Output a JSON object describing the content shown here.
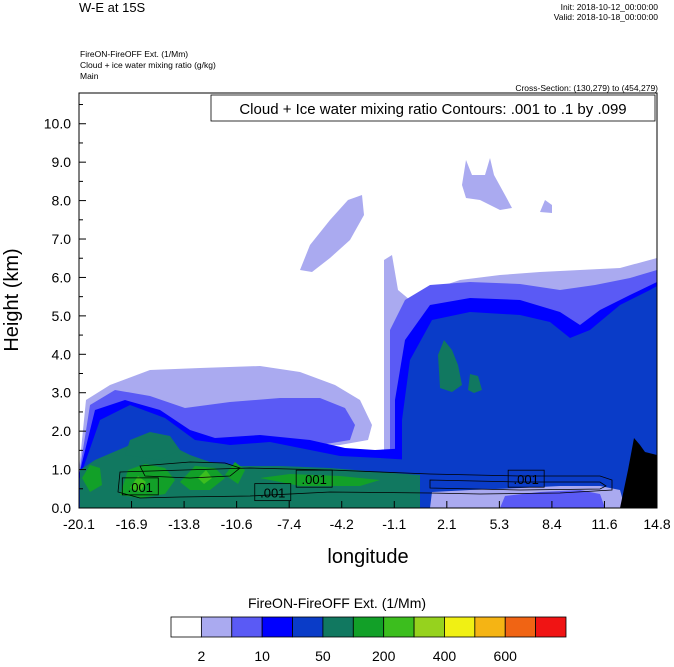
{
  "header": {
    "title": "W-E at 15S",
    "init": "Init: 2018-10-12_00:00:00",
    "valid": "Valid: 2018-10-18_00:00:00",
    "field1": "FireON-FireOFF Ext.   (1/Mm)",
    "field2": "Cloud + ice water mixing ratio   (g/kg)",
    "field3": "Main",
    "cross_section": "Cross-Section: (130,279) to (454,279)",
    "contour_info": "Cloud + Ice water mixing ratio Contours: .001 to .1 by .099"
  },
  "chart_data": {
    "type": "heatmap",
    "xlabel": "longitude",
    "ylabel": "Height (km)",
    "xlim": [
      -20.1,
      14.8
    ],
    "ylim": [
      0,
      10.8
    ],
    "x_ticks": [
      "-20.1",
      "-16.9",
      "-13.8",
      "-10.6",
      "-7.4",
      "-4.2",
      "-1.1",
      "2.1",
      "5.3",
      "8.4",
      "11.6",
      "14.8"
    ],
    "y_ticks": [
      "0.0",
      "1.0",
      "2.0",
      "3.0",
      "4.0",
      "5.0",
      "6.0",
      "7.0",
      "8.0",
      "9.0",
      "10.0"
    ],
    "contour_labels": [
      {
        "text": ".001",
        "x": -16.4,
        "y": 0.55
      },
      {
        "text": ".001",
        "x": -8.4,
        "y": 0.4
      },
      {
        "text": ".001",
        "x": -5.9,
        "y": 0.75
      },
      {
        "text": ".001",
        "x": 6.9,
        "y": 0.75
      }
    ],
    "colorbar": {
      "title": "FireON-FireOFF Ext.  (1/Mm)",
      "colors": [
        "#ffffff",
        "#aaaaf0",
        "#5a5af5",
        "#0000ff",
        "#0a3cc8",
        "#117860",
        "#12a028",
        "#3cbe1e",
        "#96d21e",
        "#f0f014",
        "#f5b414",
        "#f06414",
        "#f01414"
      ],
      "tick_labels": [
        "2",
        "10",
        "50",
        "200",
        "400",
        "600"
      ]
    },
    "terrain_color": "#000000"
  }
}
